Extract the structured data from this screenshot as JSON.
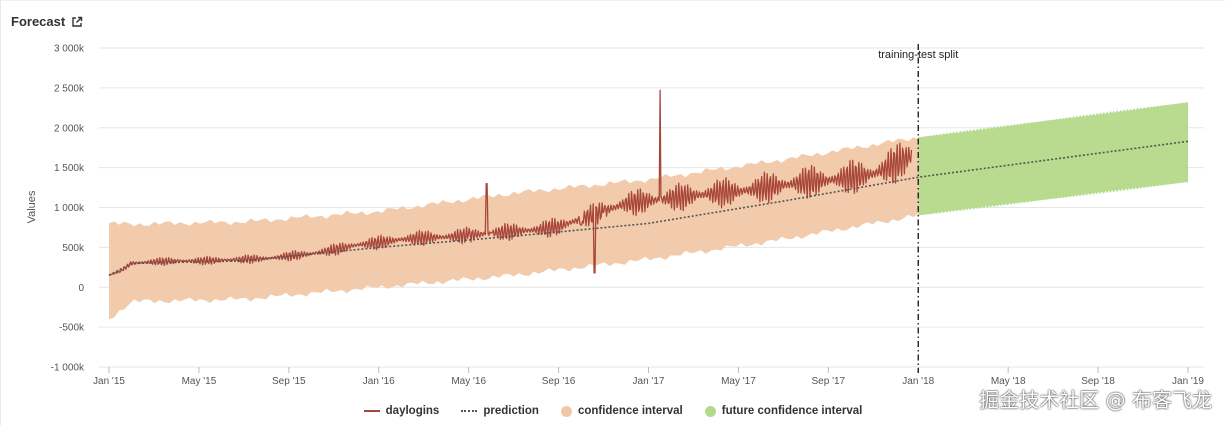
{
  "panel": {
    "title": "Forecast",
    "export_icon": "external-link-icon"
  },
  "watermark": "掘金技术社区 @ 布客飞龙",
  "colors": {
    "daylogins": "#a9463c",
    "prediction": "#555555",
    "confidence": "#f0c8a8",
    "future_confidence": "#b4d98a",
    "grid": "#e6e6e6",
    "split": "#222222"
  },
  "chart_data": {
    "type": "line",
    "title": "Forecast",
    "xlabel": "",
    "ylabel": "Values",
    "ylim": [
      -1000000,
      3000000
    ],
    "x_range_months": [
      0,
      48
    ],
    "x_ticks": [
      {
        "label": "Jan '15",
        "month": 0
      },
      {
        "label": "May '15",
        "month": 4
      },
      {
        "label": "Sep '15",
        "month": 8
      },
      {
        "label": "Jan '16",
        "month": 12
      },
      {
        "label": "May '16",
        "month": 16
      },
      {
        "label": "Sep '16",
        "month": 20
      },
      {
        "label": "Jan '17",
        "month": 24
      },
      {
        "label": "May '17",
        "month": 28
      },
      {
        "label": "Sep '17",
        "month": 32
      },
      {
        "label": "Jan '18",
        "month": 36
      },
      {
        "label": "May '18",
        "month": 40
      },
      {
        "label": "Sep '18",
        "month": 44
      },
      {
        "label": "Jan '19",
        "month": 48
      }
    ],
    "y_ticks": [
      {
        "label": "3 000k",
        "value": 3000000
      },
      {
        "label": "2 500k",
        "value": 2500000
      },
      {
        "label": "2 000k",
        "value": 2000000
      },
      {
        "label": "1 500k",
        "value": 1500000
      },
      {
        "label": "1 000k",
        "value": 1000000
      },
      {
        "label": "500k",
        "value": 500000
      },
      {
        "label": "0",
        "value": 0
      },
      {
        "label": "-500k",
        "value": -500000
      },
      {
        "label": "-1 000k",
        "value": -1000000
      }
    ],
    "grid": true,
    "legend_position": "bottom",
    "annotation": {
      "text": "training-test split",
      "month": 36
    },
    "series": [
      {
        "name": "daylogins",
        "style": "solid",
        "points": [
          [
            0,
            150000
          ],
          [
            0.5,
            200000
          ],
          [
            1,
            300000
          ],
          [
            2,
            320000
          ],
          [
            3,
            330000
          ],
          [
            4,
            330000
          ],
          [
            5,
            340000
          ],
          [
            6,
            350000
          ],
          [
            7,
            360000
          ],
          [
            8,
            390000
          ],
          [
            9,
            420000
          ],
          [
            10,
            470000
          ],
          [
            11,
            530000
          ],
          [
            12,
            560000
          ],
          [
            13,
            600000
          ],
          [
            14,
            620000
          ],
          [
            15,
            630000
          ],
          [
            16,
            650000
          ],
          [
            16.8,
            1300000
          ],
          [
            17,
            680000
          ],
          [
            18,
            700000
          ],
          [
            19,
            720000
          ],
          [
            20,
            760000
          ],
          [
            21,
            780000
          ],
          [
            21.6,
            180000
          ],
          [
            22,
            950000
          ],
          [
            23,
            1050000
          ],
          [
            24,
            1060000
          ],
          [
            24.5,
            2470000
          ],
          [
            25,
            1100000
          ],
          [
            26,
            1150000
          ],
          [
            27,
            1180000
          ],
          [
            28,
            1200000
          ],
          [
            29,
            1240000
          ],
          [
            30,
            1280000
          ],
          [
            31,
            1320000
          ],
          [
            32,
            1340000
          ],
          [
            33,
            1380000
          ],
          [
            34,
            1420000
          ],
          [
            35,
            1550000
          ],
          [
            35.7,
            1650000
          ]
        ]
      },
      {
        "name": "prediction",
        "style": "dotted",
        "points": [
          [
            0,
            150000
          ],
          [
            1,
            300000
          ],
          [
            6,
            330000
          ],
          [
            12,
            500000
          ],
          [
            18,
            640000
          ],
          [
            24,
            800000
          ],
          [
            30,
            1080000
          ],
          [
            36,
            1380000
          ],
          [
            48,
            1830000
          ]
        ]
      },
      {
        "name": "confidence interval",
        "style": "band",
        "lower": [
          [
            0,
            -400000
          ],
          [
            1,
            -180000
          ],
          [
            6,
            -150000
          ],
          [
            12,
            0
          ],
          [
            18,
            150000
          ],
          [
            24,
            350000
          ],
          [
            30,
            600000
          ],
          [
            36,
            900000
          ]
        ],
        "upper": [
          [
            0,
            800000
          ],
          [
            1,
            790000
          ],
          [
            6,
            820000
          ],
          [
            12,
            950000
          ],
          [
            18,
            1180000
          ],
          [
            24,
            1350000
          ],
          [
            30,
            1600000
          ],
          [
            36,
            1880000
          ]
        ]
      },
      {
        "name": "future confidence interval",
        "style": "band",
        "lower": [
          [
            36,
            900000
          ],
          [
            48,
            1320000
          ]
        ],
        "upper": [
          [
            36,
            1880000
          ],
          [
            48,
            2320000
          ]
        ]
      }
    ]
  },
  "legend": [
    {
      "label": "daylogins"
    },
    {
      "label": "prediction"
    },
    {
      "label": "confidence interval"
    },
    {
      "label": "future confidence interval"
    }
  ]
}
